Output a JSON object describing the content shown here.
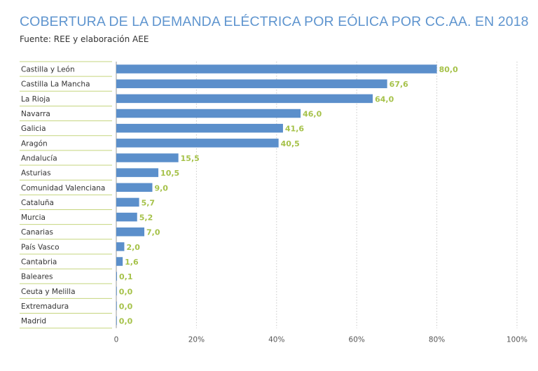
{
  "title": "COBERTURA DE LA DEMANDA ELÉCTRICA POR EÓLICA POR CC.AA. EN 2018",
  "subtitle": "Fuente: REE y elaboración AEE",
  "colors": {
    "title": "#5f95cf",
    "bar": "#5b8fcb",
    "value_label": "#a6c24a",
    "divider": "#c5d57e",
    "gridline": "#c8c8c8"
  },
  "chart_data": {
    "type": "bar",
    "orientation": "horizontal",
    "categories": [
      "Castilla y León",
      "Castilla La Mancha",
      "La Rioja",
      "Navarra",
      "Galicia",
      "Aragón",
      "Andalucía",
      "Asturias",
      "Comunidad Valenciana",
      "Cataluña",
      "Murcia",
      "Canarias",
      "País Vasco",
      "Cantabria",
      "Baleares",
      "Ceuta y Melilla",
      "Extremadura",
      "Madrid"
    ],
    "values": [
      80.0,
      67.6,
      64.0,
      46.0,
      41.6,
      40.5,
      15.5,
      10.5,
      9.0,
      5.7,
      5.2,
      7.0,
      2.0,
      1.6,
      0.1,
      0.0,
      0.0,
      0.0
    ],
    "value_labels": [
      "80,0",
      "67,6",
      "64,0",
      "46,0",
      "41,6",
      "40,5",
      "15,5",
      "10,5",
      "9,0",
      "5,7",
      "5,2",
      "7,0",
      "2,0",
      "1,6",
      "0,1",
      "0,0",
      "0,0",
      "0,0"
    ],
    "x_ticks": [
      0,
      20,
      40,
      60,
      80,
      100
    ],
    "x_tick_labels": [
      "0",
      "20%",
      "40%",
      "60%",
      "80%",
      "100%"
    ],
    "xlim": [
      0,
      100
    ],
    "grid": "vertical dotted"
  }
}
